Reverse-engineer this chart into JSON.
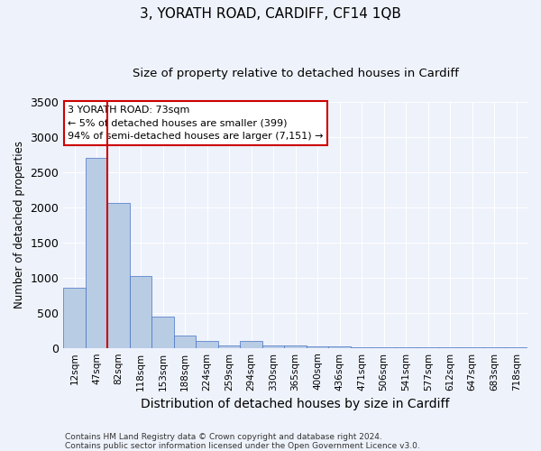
{
  "title": "3, YORATH ROAD, CARDIFF, CF14 1QB",
  "subtitle": "Size of property relative to detached houses in Cardiff",
  "xlabel": "Distribution of detached houses by size in Cardiff",
  "ylabel": "Number of detached properties",
  "footnote1": "Contains HM Land Registry data © Crown copyright and database right 2024.",
  "footnote2": "Contains public sector information licensed under the Open Government Licence v3.0.",
  "categories": [
    "12sqm",
    "47sqm",
    "82sqm",
    "118sqm",
    "153sqm",
    "188sqm",
    "224sqm",
    "259sqm",
    "294sqm",
    "330sqm",
    "365sqm",
    "400sqm",
    "436sqm",
    "471sqm",
    "506sqm",
    "541sqm",
    "577sqm",
    "612sqm",
    "647sqm",
    "683sqm",
    "718sqm"
  ],
  "values": [
    850,
    2700,
    2060,
    1020,
    450,
    170,
    100,
    40,
    100,
    40,
    30,
    20,
    20,
    15,
    10,
    10,
    8,
    5,
    5,
    5,
    3
  ],
  "bar_color": "#b8cce4",
  "bar_edge_color": "#4472c4",
  "bar_edge_width": 0.5,
  "vline_x": 1.5,
  "vline_color": "#cc0000",
  "ylim": [
    0,
    3500
  ],
  "annotation_line1": "3 YORATH ROAD: 73sqm",
  "annotation_line2": "← 5% of detached houses are smaller (399)",
  "annotation_line3": "94% of semi-detached houses are larger (7,151) →",
  "annotation_box_color": "#cc0000",
  "background_color": "#eef2fb",
  "grid_color": "#ffffff",
  "title_fontsize": 11,
  "subtitle_fontsize": 9.5,
  "tick_fontsize": 7.5,
  "ylabel_fontsize": 8.5,
  "xlabel_fontsize": 10,
  "annotation_fontsize": 8,
  "footnote_fontsize": 6.5
}
